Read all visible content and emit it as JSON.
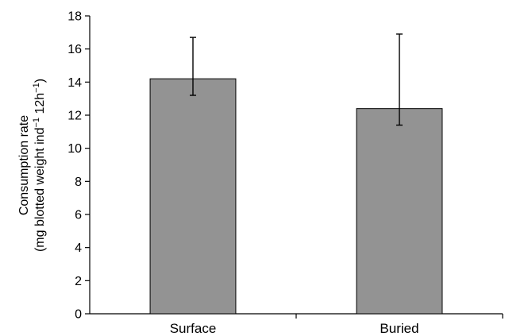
{
  "chart_data": {
    "type": "bar",
    "categories": [
      "Surface",
      "Buried"
    ],
    "values": [
      14.2,
      12.4
    ],
    "error_upper": [
      16.7,
      16.9
    ],
    "error_lower": [
      13.2,
      11.4
    ],
    "title": "",
    "xlabel": "",
    "ylabel_line1": "Consumption rate",
    "ylabel_line2_pre": "(mg blotted weight ind",
    "ylabel_line2_sup1": "−1",
    "ylabel_line2_mid": " 12h",
    "ylabel_line2_sup2": "−1",
    "ylabel_line2_post": ")",
    "ylim": [
      0,
      18
    ],
    "yticks": [
      0,
      2,
      4,
      6,
      8,
      10,
      12,
      14,
      16,
      18
    ],
    "grid": false,
    "colors": {
      "bar": "#939393",
      "axis": "#000000"
    }
  }
}
